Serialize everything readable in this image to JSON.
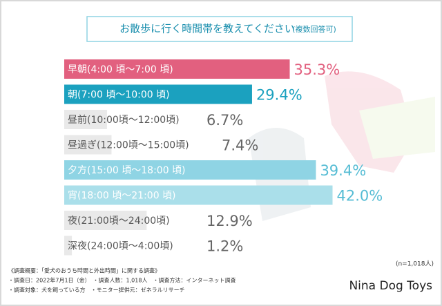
{
  "chart_data": {
    "type": "bar",
    "title": "お散歩に行く時間帯を教えてください",
    "subtitle": "(複数回答可)",
    "categories": [
      "早朝(4:00 頃〜7:00 頃)",
      "朝(7:00 頃〜10:00 頃)",
      "昼前(10:00頃〜12:00頃)",
      "昼過ぎ(12:00頃〜15:00頃)",
      "夕方(15:00 頃〜18:00 頃)",
      "宵(18:00 頃〜21:00 頃)",
      "夜(21:00頃〜24:00頃)",
      "深夜(24:00頃〜4:00頃)"
    ],
    "values": [
      35.3,
      29.4,
      6.7,
      7.4,
      39.4,
      42.0,
      12.9,
      1.2
    ],
    "value_labels": [
      "35.3%",
      "29.4%",
      "6.7%",
      "7.4%",
      "39.4%",
      "42.0%",
      "12.9%",
      "1.2%"
    ],
    "colors": [
      "#e2607f",
      "#1ba1bf",
      "#e9e9e9",
      "#e9e9e9",
      "#8fd4e4",
      "#aadfea",
      "#e9e9e9",
      "#e9e9e9"
    ],
    "label_colors": [
      "#ffffff",
      "#ffffff",
      "#555555",
      "#555555",
      "#ffffff",
      "#ffffff",
      "#555555",
      "#555555"
    ],
    "value_colors": [
      "#e2607f",
      "#1ba1bf",
      "#666666",
      "#666666",
      "#55bcd4",
      "#55bcd4",
      "#666666",
      "#666666"
    ],
    "note": "(n=1,018人)",
    "footnotes": [
      "《調査概要：「愛犬のおうち時間と外出時間」に関する調査》",
      "・調査日：2022年7月1日（金）　・調査人数：1,018人　・調査方法：インターネット調査",
      "・調査対象：犬を飼っている方　・モニター提供元：ゼネラルリサーチ"
    ],
    "brand": "Nina Dog Toys"
  }
}
